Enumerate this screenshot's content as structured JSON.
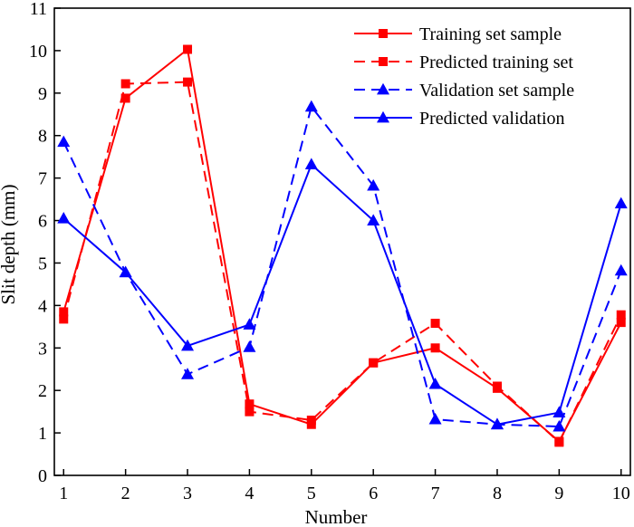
{
  "chart_data": {
    "type": "line",
    "xlabel": "Number",
    "ylabel": "Slit depth (mm)",
    "xlim": [
      0.85,
      10.15
    ],
    "ylim": [
      0,
      11
    ],
    "x": [
      1,
      2,
      3,
      4,
      5,
      6,
      7,
      8,
      9,
      10
    ],
    "xticks": [
      "1",
      "2",
      "3",
      "4",
      "5",
      "6",
      "7",
      "8",
      "9",
      "10"
    ],
    "yticks": [
      "0",
      "1",
      "2",
      "3",
      "4",
      "5",
      "6",
      "7",
      "8",
      "9",
      "10",
      "11"
    ],
    "legend_position": "top-right",
    "grid": false,
    "series": [
      {
        "name": "Training set sample",
        "color": "#ff0000",
        "dash": "solid",
        "marker": "square",
        "values": [
          3.85,
          8.88,
          10.03,
          1.68,
          1.2,
          2.65,
          3.0,
          2.05,
          0.8,
          3.6
        ]
      },
      {
        "name": "Predicted training set",
        "color": "#ff0000",
        "dash": "dashed",
        "marker": "square",
        "values": [
          3.68,
          9.22,
          9.26,
          1.5,
          1.3,
          2.65,
          3.58,
          2.1,
          0.78,
          3.78
        ]
      },
      {
        "name": "Validation set sample",
        "color": "#0000ff",
        "dash": "dashed",
        "marker": "triangle",
        "values": [
          7.85,
          4.78,
          2.38,
          3.02,
          8.68,
          6.82,
          1.32,
          1.2,
          1.15,
          4.82
        ]
      },
      {
        "name": "Predicted validation",
        "color": "#0000ff",
        "dash": "solid",
        "marker": "triangle",
        "values": [
          6.05,
          4.78,
          3.05,
          3.55,
          7.32,
          6.0,
          2.15,
          1.2,
          1.48,
          6.4
        ]
      }
    ]
  }
}
